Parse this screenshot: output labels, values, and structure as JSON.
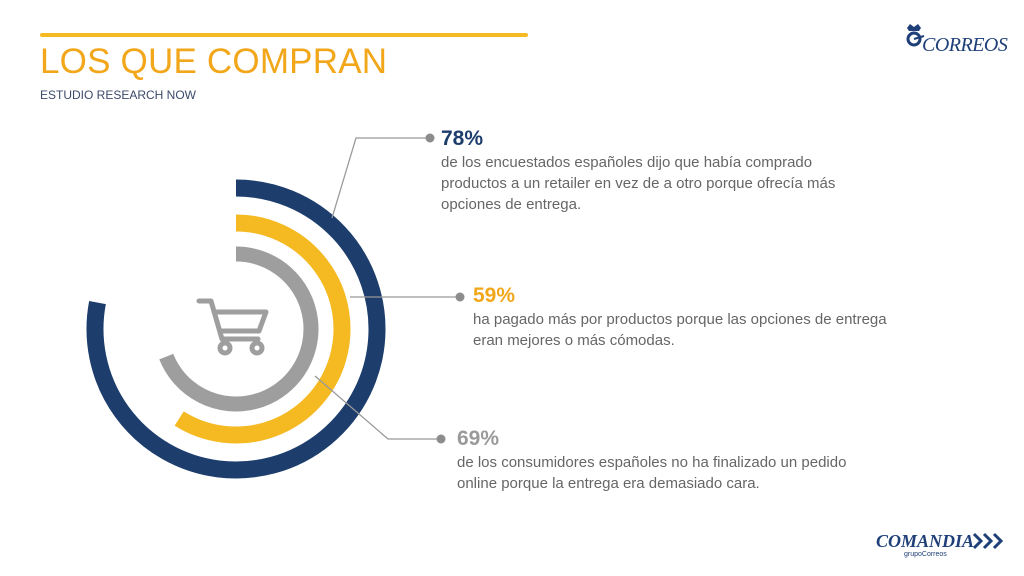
{
  "header": {
    "title": "LOS QUE COMPRAN",
    "subtitle": "ESTUDIO RESEARCH NOW"
  },
  "brand": {
    "top_logo_text": "CORREOS",
    "bottom_logo_text": "COMANDIA",
    "bottom_logo_sub": "grupoCorreos"
  },
  "colors": {
    "accent_yellow": "#f5b921",
    "navy": "#1d3d6c",
    "gray": "#9a9a9a",
    "text": "#666666"
  },
  "icons": {
    "center": "shopping-cart-icon",
    "top_logo": "crown-horn-icon",
    "bottom_logo": "chevrons-right-icon"
  },
  "chart_data": {
    "type": "radial-bar",
    "title": "",
    "series": [
      {
        "value": 78,
        "label": "78%",
        "description": "de los encuestados españoles dijo que había comprado productos a un retailer en vez de a otro porque ofrecía más opciones de entrega.",
        "color": "#1d3d6c"
      },
      {
        "value": 59,
        "label": "59%",
        "description": "ha pagado más por productos porque las opciones de entrega eran mejores o más cómodas.",
        "color": "#f5b921"
      },
      {
        "value": 69,
        "label": "69%",
        "description": "de los consumidores españoles no ha finalizado un pedido online porque la entrega era demasiado cara.",
        "color": "#9e9e9e"
      }
    ]
  }
}
